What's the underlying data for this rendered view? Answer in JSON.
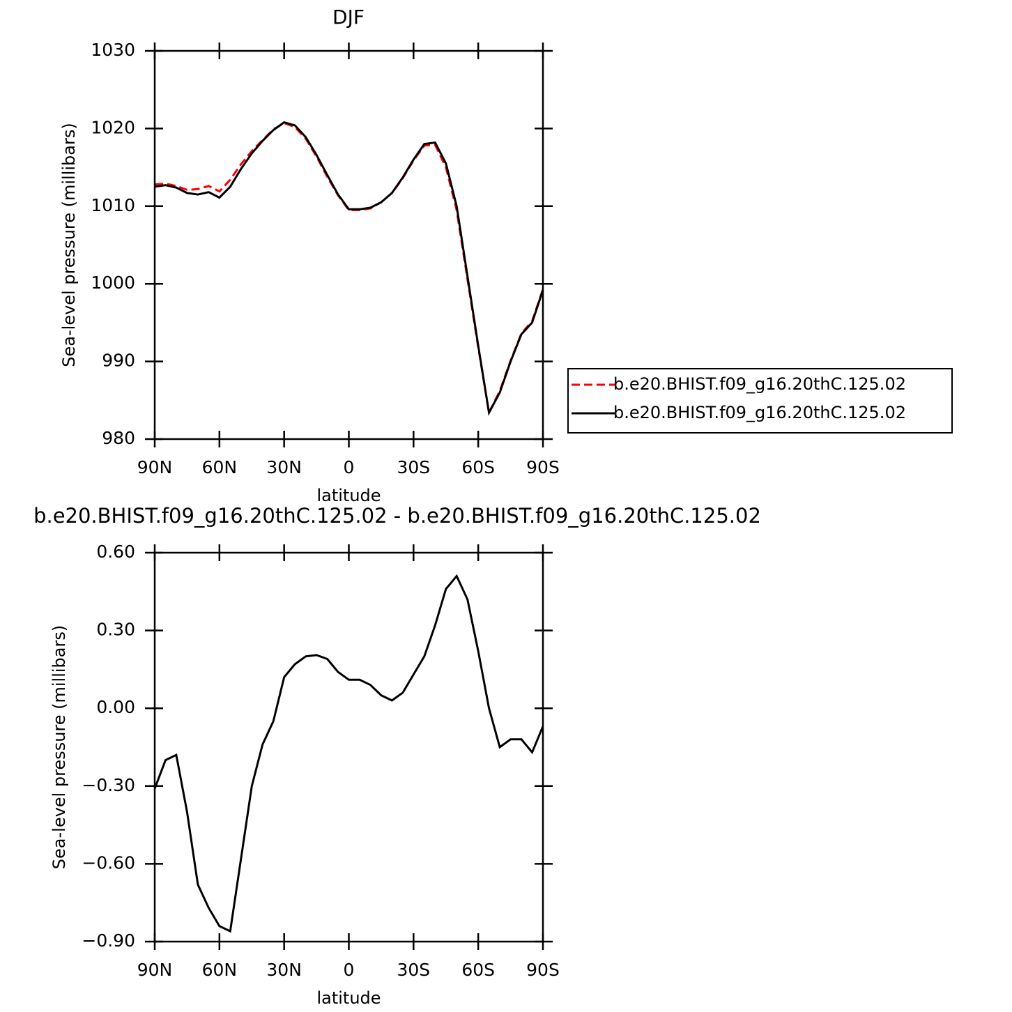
{
  "chart_data": [
    {
      "type": "line",
      "title": "DJF",
      "xlabel": "latitude",
      "ylabel": "Sea-level pressure (millibars)",
      "x": [
        90,
        85,
        80,
        75,
        70,
        65,
        60,
        55,
        50,
        45,
        40,
        35,
        30,
        25,
        20,
        15,
        10,
        5,
        0,
        -5,
        -10,
        -15,
        -20,
        -25,
        -30,
        -35,
        -40,
        -45,
        -50,
        -55,
        -60,
        -65,
        -70,
        -75,
        -80,
        -85,
        -90
      ],
      "series": [
        {
          "name": "b.e20.BHIST.f09_g16.20thC.125.02",
          "color": "#ff0000",
          "dash": true,
          "values": [
            1012.8,
            1012.9,
            1012.6,
            1012.1,
            1012.2,
            1012.6,
            1011.9,
            1013.4,
            1015.4,
            1017.1,
            1018.5,
            1019.9,
            1020.7,
            1020.2,
            1018.7,
            1016.4,
            1013.8,
            1011.4,
            1009.5,
            1009.5,
            1009.7,
            1010.5,
            1011.7,
            1013.6,
            1015.9,
            1017.8,
            1017.9,
            1015.0,
            1009.5,
            1000.6,
            991.8,
            983.4,
            986.2,
            990.1,
            993.6,
            995.2,
            999.3
          ]
        },
        {
          "name": "b.e20.BHIST.f09_g16.20thC.125.02",
          "color": "#000000",
          "dash": false,
          "values": [
            1012.5,
            1012.7,
            1012.4,
            1011.7,
            1011.5,
            1011.8,
            1011.1,
            1012.5,
            1014.8,
            1016.8,
            1018.4,
            1019.8,
            1020.8,
            1020.4,
            1018.9,
            1016.6,
            1014.0,
            1011.5,
            1009.6,
            1009.6,
            1009.8,
            1010.5,
            1011.7,
            1013.7,
            1016.0,
            1018.0,
            1018.2,
            1015.5,
            1010.0,
            1001.0,
            992.0,
            983.4,
            986.0,
            990.0,
            993.5,
            995.0,
            999.2
          ]
        }
      ],
      "xlim": [
        90,
        -90
      ],
      "xticks": [
        {
          "value": 90,
          "label": "90N"
        },
        {
          "value": 60,
          "label": "60N"
        },
        {
          "value": 30,
          "label": "30N"
        },
        0,
        {
          "value": -30,
          "label": "30S"
        },
        {
          "value": -60,
          "label": "60S"
        },
        {
          "value": -90,
          "label": "90S"
        }
      ],
      "ylim": [
        980,
        1030
      ],
      "yticks": [
        980,
        990,
        1000,
        1010,
        1020,
        1030
      ],
      "legend": "right"
    },
    {
      "type": "line",
      "title": "b.e20.BHIST.f09_g16.20thC.125.02 - b.e20.BHIST.f09_g16.20thC.125.02",
      "xlabel": "latitude",
      "ylabel": "Sea-level pressure (millibars)",
      "x": [
        90,
        85,
        80,
        75,
        70,
        65,
        60,
        55,
        50,
        45,
        40,
        35,
        30,
        25,
        20,
        15,
        10,
        5,
        0,
        -5,
        -10,
        -15,
        -20,
        -25,
        -30,
        -35,
        -40,
        -45,
        -50,
        -55,
        -60,
        -65,
        -70,
        -75,
        -80,
        -85,
        -90
      ],
      "series": [
        {
          "color": "#000000",
          "dash": false,
          "values": [
            -0.31,
            -0.2,
            -0.18,
            -0.4,
            -0.68,
            -0.77,
            -0.84,
            -0.86,
            -0.58,
            -0.3,
            -0.14,
            -0.05,
            0.12,
            0.17,
            0.2,
            0.205,
            0.19,
            0.14,
            0.11,
            0.11,
            0.09,
            0.05,
            0.03,
            0.06,
            0.13,
            0.2,
            0.32,
            0.46,
            0.51,
            0.42,
            0.22,
            0.0,
            -0.15,
            -0.12,
            -0.12,
            -0.17,
            -0.07
          ]
        }
      ],
      "xlim": [
        90,
        -90
      ],
      "xticks": [
        {
          "value": 90,
          "label": "90N"
        },
        {
          "value": 60,
          "label": "60N"
        },
        {
          "value": 30,
          "label": "30N"
        },
        0,
        {
          "value": -30,
          "label": "30S"
        },
        {
          "value": -60,
          "label": "60S"
        },
        {
          "value": -90,
          "label": "90S"
        }
      ],
      "ylim": [
        -0.9,
        0.6
      ],
      "yticks": [
        {
          "value": -0.9,
          "label": "−0.90"
        },
        {
          "value": -0.6,
          "label": "−0.60"
        },
        {
          "value": -0.3,
          "label": "−0.30"
        },
        {
          "value": 0,
          "label": "0.00"
        },
        {
          "value": 0.3,
          "label": "0.30"
        },
        {
          "value": 0.6,
          "label": "0.60"
        }
      ]
    }
  ]
}
